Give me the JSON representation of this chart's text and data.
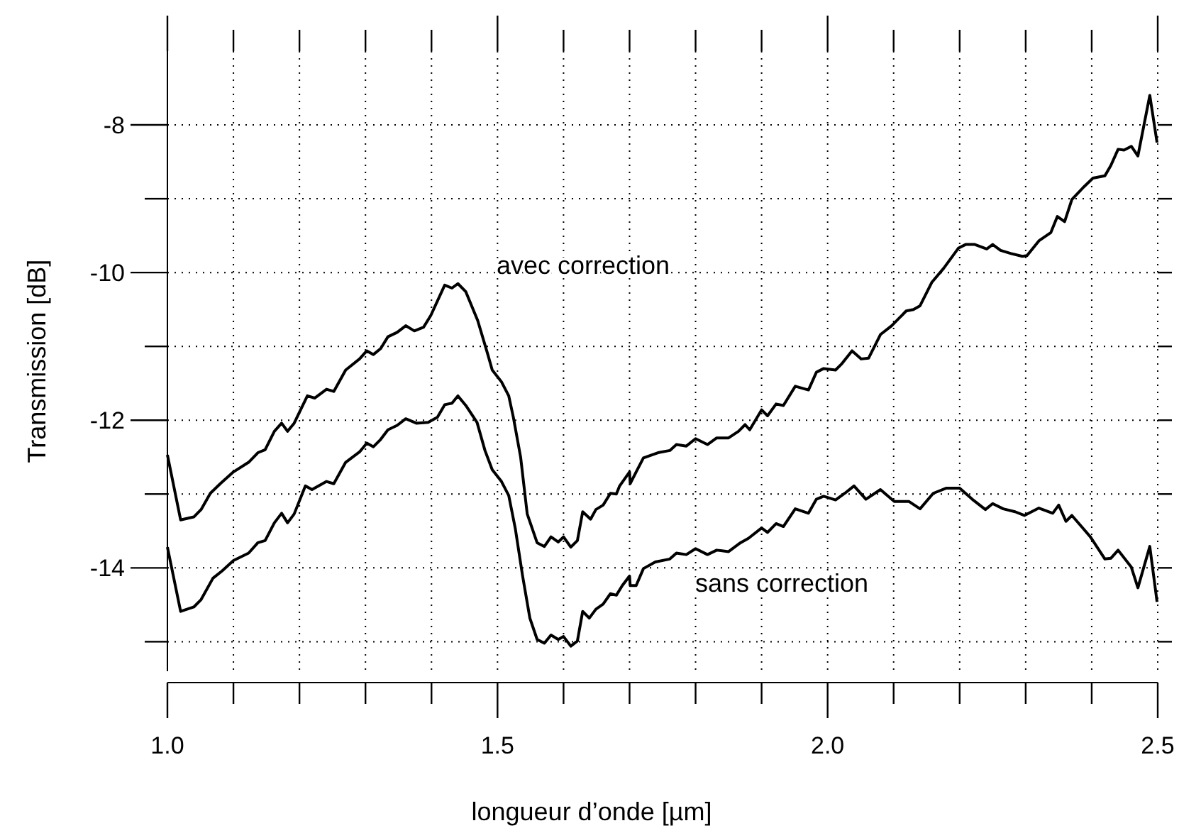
{
  "chart_data": {
    "type": "line",
    "xlabel": "longueur d’onde [µm]",
    "ylabel": "Transmission [dB]",
    "xlim": [
      1.0,
      2.5
    ],
    "ylim": [
      -15.4,
      -7
    ],
    "xticks": [
      {
        "value": 1.0,
        "label": "1.0"
      },
      {
        "value": 1.1,
        "label": null
      },
      {
        "value": 1.2,
        "label": null
      },
      {
        "value": 1.3,
        "label": null
      },
      {
        "value": 1.4,
        "label": null
      },
      {
        "value": 1.5,
        "label": "1.5"
      },
      {
        "value": 1.6,
        "label": null
      },
      {
        "value": 1.7,
        "label": null
      },
      {
        "value": 1.8,
        "label": null
      },
      {
        "value": 1.9,
        "label": null
      },
      {
        "value": 2.0,
        "label": "2.0"
      },
      {
        "value": 2.1,
        "label": null
      },
      {
        "value": 2.2,
        "label": null
      },
      {
        "value": 2.3,
        "label": null
      },
      {
        "value": 2.4,
        "label": null
      },
      {
        "value": 2.5,
        "label": "2.5"
      }
    ],
    "yticks": [
      -8,
      {
        "value": -9,
        "label": null
      },
      -10,
      {
        "value": -11,
        "label": null
      },
      -12,
      {
        "value": -13,
        "label": null
      },
      -14,
      {
        "value": -15,
        "label": null
      }
    ],
    "grid": true,
    "line_style": "solid",
    "marker": "none",
    "series": [
      {
        "name": "avec correction",
        "color": "#000000",
        "x": [
          1.0,
          1.02,
          1.04,
          1.051,
          1.065,
          1.08,
          1.1,
          1.123,
          1.137,
          1.148,
          1.162,
          1.173,
          1.182,
          1.192,
          1.212,
          1.223,
          1.241,
          1.252,
          1.27,
          1.291,
          1.302,
          1.312,
          1.323,
          1.334,
          1.348,
          1.361,
          1.374,
          1.388,
          1.399,
          1.42,
          1.431,
          1.44,
          1.452,
          1.47,
          1.485,
          1.492,
          1.506,
          1.517,
          1.524,
          1.535,
          1.545,
          1.56,
          1.571,
          1.581,
          1.592,
          1.6,
          1.611,
          1.621,
          1.629,
          1.641,
          1.649,
          1.66,
          1.671,
          1.68,
          1.685,
          1.7,
          1.701,
          1.71,
          1.721,
          1.743,
          1.761,
          1.771,
          1.786,
          1.8,
          1.818,
          1.832,
          1.85,
          1.865,
          1.875,
          1.882,
          1.9,
          1.909,
          1.922,
          1.933,
          1.951,
          1.971,
          1.983,
          1.994,
          2.012,
          2.021,
          2.037,
          2.051,
          2.062,
          2.08,
          2.097,
          2.119,
          2.13,
          2.14,
          2.158,
          2.176,
          2.198,
          2.209,
          2.223,
          2.241,
          2.25,
          2.262,
          2.277,
          2.295,
          2.302,
          2.32,
          2.338,
          2.348,
          2.359,
          2.37,
          2.388,
          2.402,
          2.42,
          2.429,
          2.44,
          2.449,
          2.46,
          2.47,
          2.488,
          2.499
        ],
        "values": [
          -12.47,
          -13.35,
          -13.31,
          -13.21,
          -12.99,
          -12.86,
          -12.7,
          -12.57,
          -12.44,
          -12.4,
          -12.15,
          -12.04,
          -12.15,
          -12.04,
          -11.67,
          -11.7,
          -11.58,
          -11.61,
          -11.32,
          -11.17,
          -11.06,
          -11.11,
          -11.03,
          -10.87,
          -10.81,
          -10.72,
          -10.79,
          -10.74,
          -10.58,
          -10.17,
          -10.21,
          -10.15,
          -10.26,
          -10.65,
          -11.1,
          -11.32,
          -11.48,
          -11.67,
          -11.96,
          -12.5,
          -13.27,
          -13.66,
          -13.71,
          -13.58,
          -13.65,
          -13.58,
          -13.72,
          -13.63,
          -13.24,
          -13.34,
          -13.21,
          -13.15,
          -12.99,
          -13.0,
          -12.89,
          -12.7,
          -12.86,
          -12.7,
          -12.51,
          -12.44,
          -12.41,
          -12.33,
          -12.35,
          -12.25,
          -12.33,
          -12.24,
          -12.24,
          -12.15,
          -12.06,
          -12.13,
          -11.86,
          -11.94,
          -11.78,
          -11.8,
          -11.54,
          -11.59,
          -11.35,
          -11.3,
          -11.32,
          -11.24,
          -11.06,
          -11.17,
          -11.16,
          -10.84,
          -10.72,
          -10.52,
          -10.5,
          -10.45,
          -10.13,
          -9.94,
          -9.67,
          -9.62,
          -9.62,
          -9.68,
          -9.62,
          -9.7,
          -9.74,
          -9.78,
          -9.77,
          -9.57,
          -9.46,
          -9.24,
          -9.31,
          -9.01,
          -8.84,
          -8.72,
          -8.69,
          -8.55,
          -8.33,
          -8.34,
          -8.29,
          -8.42,
          -7.6,
          -8.24
        ]
      },
      {
        "name": "sans correction",
        "color": "#000000",
        "x": [
          1.0,
          1.02,
          1.04,
          1.051,
          1.069,
          1.083,
          1.1,
          1.123,
          1.137,
          1.148,
          1.162,
          1.173,
          1.182,
          1.192,
          1.209,
          1.219,
          1.241,
          1.252,
          1.27,
          1.291,
          1.302,
          1.312,
          1.323,
          1.334,
          1.348,
          1.361,
          1.377,
          1.395,
          1.409,
          1.42,
          1.431,
          1.44,
          1.452,
          1.469,
          1.481,
          1.492,
          1.506,
          1.517,
          1.527,
          1.538,
          1.549,
          1.56,
          1.571,
          1.581,
          1.592,
          1.6,
          1.611,
          1.621,
          1.629,
          1.639,
          1.649,
          1.66,
          1.671,
          1.68,
          1.689,
          1.7,
          1.701,
          1.71,
          1.721,
          1.739,
          1.761,
          1.771,
          1.786,
          1.8,
          1.818,
          1.832,
          1.85,
          1.868,
          1.88,
          1.9,
          1.909,
          1.922,
          1.933,
          1.951,
          1.971,
          1.983,
          1.994,
          2.012,
          2.026,
          2.04,
          2.058,
          2.08,
          2.101,
          2.123,
          2.14,
          2.16,
          2.18,
          2.2,
          2.219,
          2.239,
          2.25,
          2.266,
          2.284,
          2.298,
          2.32,
          2.341,
          2.35,
          2.361,
          2.37,
          2.398,
          2.42,
          2.429,
          2.44,
          2.46,
          2.47,
          2.488,
          2.499
        ],
        "values": [
          -13.72,
          -14.59,
          -14.53,
          -14.43,
          -14.14,
          -14.04,
          -13.9,
          -13.8,
          -13.66,
          -13.63,
          -13.39,
          -13.26,
          -13.39,
          -13.27,
          -12.89,
          -12.94,
          -12.83,
          -12.86,
          -12.57,
          -12.43,
          -12.31,
          -12.36,
          -12.26,
          -12.13,
          -12.07,
          -11.98,
          -12.04,
          -12.03,
          -11.96,
          -11.79,
          -11.77,
          -11.67,
          -11.8,
          -12.03,
          -12.41,
          -12.67,
          -12.83,
          -13.02,
          -13.47,
          -14.11,
          -14.68,
          -14.97,
          -15.02,
          -14.91,
          -14.97,
          -14.93,
          -15.06,
          -14.99,
          -14.59,
          -14.68,
          -14.56,
          -14.49,
          -14.35,
          -14.37,
          -14.24,
          -14.11,
          -14.24,
          -14.24,
          -14.01,
          -13.92,
          -13.88,
          -13.8,
          -13.82,
          -13.74,
          -13.82,
          -13.76,
          -13.78,
          -13.66,
          -13.6,
          -13.46,
          -13.52,
          -13.4,
          -13.44,
          -13.2,
          -13.26,
          -13.07,
          -13.03,
          -13.08,
          -12.99,
          -12.89,
          -13.07,
          -12.94,
          -13.1,
          -13.1,
          -13.2,
          -12.99,
          -12.92,
          -12.92,
          -13.07,
          -13.21,
          -13.13,
          -13.2,
          -13.24,
          -13.29,
          -13.19,
          -13.26,
          -13.15,
          -13.37,
          -13.29,
          -13.58,
          -13.88,
          -13.87,
          -13.76,
          -13.99,
          -14.27,
          -13.71,
          -14.46
        ]
      }
    ]
  }
}
